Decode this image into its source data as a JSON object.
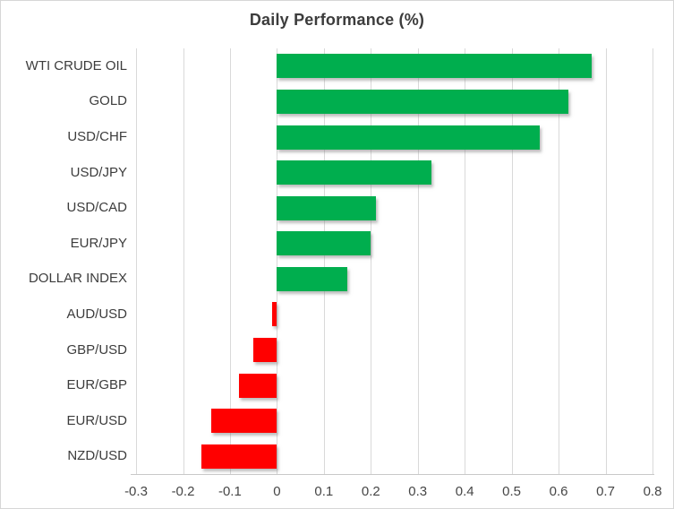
{
  "chart_data": {
    "type": "bar",
    "orientation": "horizontal",
    "title": "Daily Performance (%)",
    "categories": [
      "WTI CRUDE OIL",
      "GOLD",
      "USD/CHF",
      "USD/JPY",
      "USD/CAD",
      "EUR/JPY",
      "DOLLAR INDEX",
      "AUD/USD",
      "GBP/USD",
      "EUR/GBP",
      "EUR/USD",
      "NZD/USD"
    ],
    "values": [
      0.67,
      0.62,
      0.56,
      0.33,
      0.21,
      0.2,
      0.15,
      -0.01,
      -0.05,
      -0.08,
      -0.14,
      -0.16
    ],
    "xlabel": "",
    "ylabel": "",
    "xlim": [
      -0.3,
      0.8
    ],
    "xticks": [
      -0.3,
      -0.2,
      -0.1,
      0,
      0.1,
      0.2,
      0.3,
      0.4,
      0.5,
      0.6,
      0.7,
      0.8
    ],
    "xtick_labels": [
      "-0.3",
      "-0.2",
      "-0.1",
      "0",
      "0.1",
      "0.2",
      "0.3",
      "0.4",
      "0.5",
      "0.6",
      "0.7",
      "0.8"
    ],
    "grid": true,
    "legend": "none",
    "positive_color": "#00ae4e",
    "negative_color": "#ff0000",
    "gridline_color": "#d9d9d9",
    "title_color": "#3c3c3c",
    "label_color": "#3c3c3c"
  }
}
